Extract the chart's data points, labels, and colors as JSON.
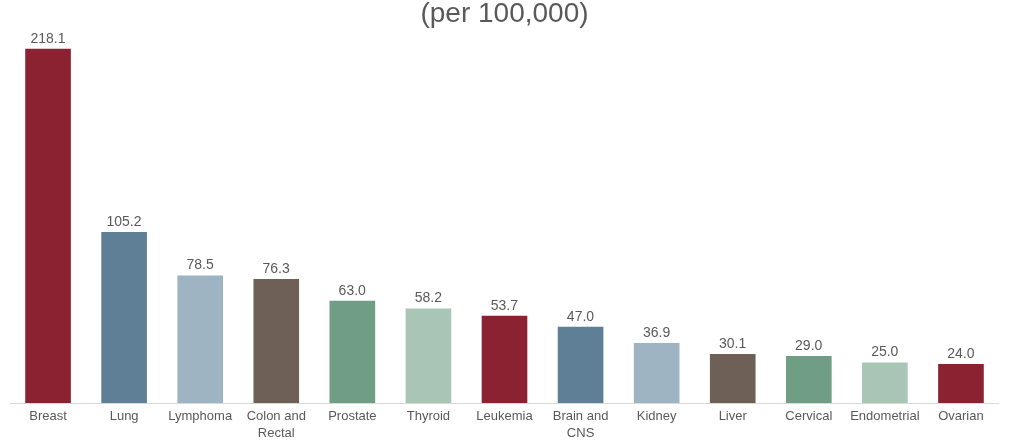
{
  "chart_data": {
    "type": "bar",
    "title": "(per 100,000)",
    "categories": [
      "Breast",
      "Lung",
      "Lymphoma",
      "Colon and Rectal",
      "Prostate",
      "Thyroid",
      "Leukemia",
      "Brain and CNS",
      "Kidney",
      "Liver",
      "Cervical",
      "Endometrial",
      "Ovarian"
    ],
    "values": [
      218.1,
      105.2,
      78.5,
      76.3,
      63.0,
      58.2,
      53.7,
      47.0,
      36.9,
      30.1,
      29.0,
      25.0,
      24.0
    ],
    "value_labels": [
      "218.1",
      "105.2",
      "78.5",
      "76.3",
      "63.0",
      "58.2",
      "53.7",
      "47.0",
      "36.9",
      "30.1",
      "29.0",
      "25.0",
      "24.0"
    ],
    "colors": [
      "#8b2232",
      "#5e7f96",
      "#9fb4c3",
      "#6e6057",
      "#6f9e84",
      "#a8c5b6",
      "#8b2232",
      "#5e7f96",
      "#9fb4c3",
      "#6e6057",
      "#6f9e84",
      "#a8c5b6",
      "#8b2232"
    ],
    "tick_labels": "x",
    "grid": false
  }
}
